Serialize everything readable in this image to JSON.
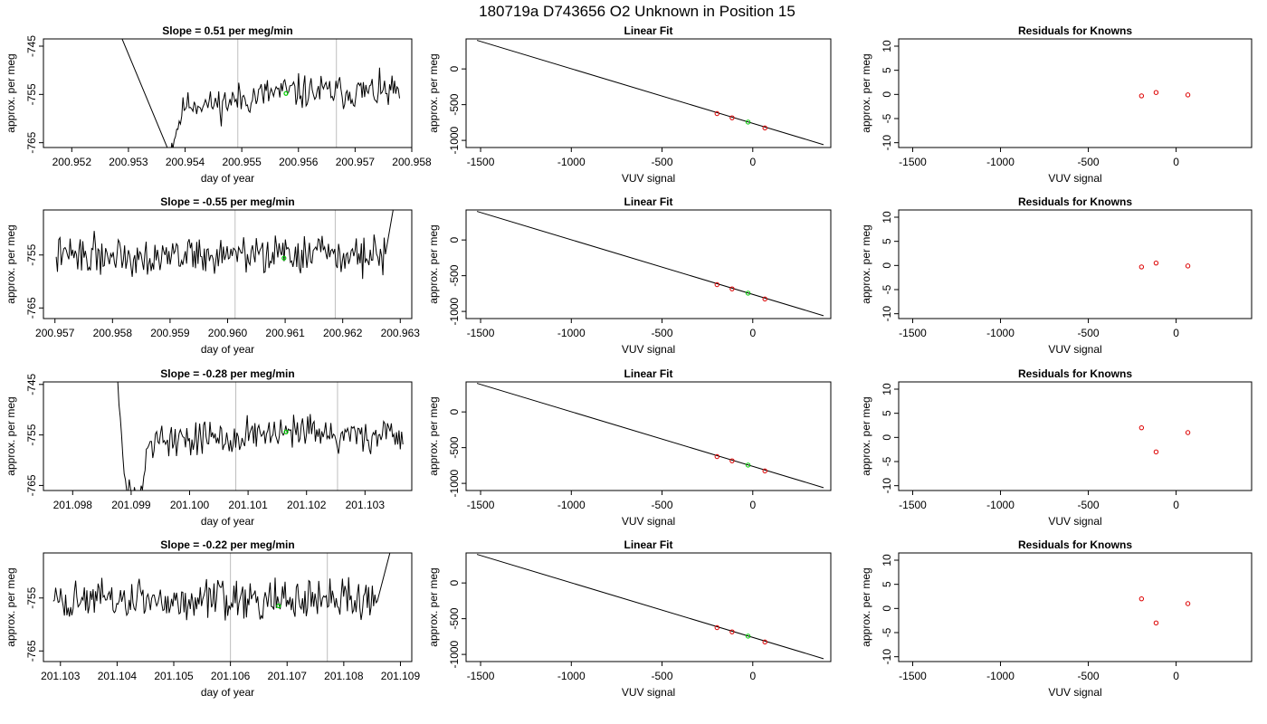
{
  "page": {
    "title": "180719a      D743656    O2 Unknown in Position  15"
  },
  "chart_data": [
    {
      "type": "line",
      "row": 0,
      "col": 0,
      "title": "Slope =  0.51  per meg/min",
      "xlabel": "day of year",
      "ylabel": "approx. per meg",
      "xlim": [
        200.9515,
        200.958
      ],
      "ylim": [
        -766,
        -743.5
      ],
      "xticks": [
        200.952,
        200.953,
        200.954,
        200.955,
        200.956,
        200.957,
        200.958
      ],
      "xtick_labels": [
        "200.952",
        "200.953",
        "200.954",
        "200.955",
        "200.956",
        "200.957",
        "200.958"
      ],
      "yticks": [
        -745,
        -755,
        -765
      ],
      "ytick_labels": [
        "-745",
        "-755",
        "-765"
      ],
      "vlines": [
        200.95493,
        200.95667
      ],
      "marker": {
        "x": 200.95578,
        "y": -754.8
      },
      "series": [
        {
          "x_start": 200.95285,
          "x_end": 200.9578,
          "rng_seed": 11,
          "segments": [
            {
              "to": 200.95287,
              "y": -743,
              "noise": 0
            },
            {
              "to": 200.95372,
              "y": -767,
              "noise": 0
            },
            {
              "to": 200.95455,
              "y": -757,
              "noise": 1.2
            },
            {
              "to": 200.9578,
              "y": -754.5,
              "noise": 1.6
            }
          ]
        }
      ]
    },
    {
      "type": "scatter",
      "row": 0,
      "col": 1,
      "title": "Linear Fit",
      "xlabel": "VUV signal",
      "ylabel": "approx. per meg",
      "xlim": [
        -1580,
        430
      ],
      "ylim": [
        -1100,
        420
      ],
      "xticks": [
        -1500,
        -1000,
        -500,
        0
      ],
      "xtick_labels": [
        "-1500",
        "-1000",
        "-500",
        "0"
      ],
      "yticks": [
        0,
        -500,
        -1000
      ],
      "ytick_labels": [
        "0",
        "-500",
        "-1000"
      ],
      "fit_line": {
        "x": [
          -1520,
          390
        ],
        "y": [
          400,
          -1060
        ]
      },
      "points": [
        {
          "x": -197,
          "y": -625
        },
        {
          "x": -114,
          "y": -684
        },
        {
          "x": 67,
          "y": -826
        }
      ],
      "unknown_point": {
        "x": -26,
        "y": -744
      }
    },
    {
      "type": "scatter",
      "row": 0,
      "col": 2,
      "title": "Residuals for Knowns",
      "xlabel": "VUV signal",
      "ylabel": "approx. per meg",
      "xlim": [
        -1580,
        430
      ],
      "ylim": [
        -11,
        11.5
      ],
      "xticks": [
        -1500,
        -1000,
        -500,
        0
      ],
      "xtick_labels": [
        "-1500",
        "-1000",
        "-500",
        "0"
      ],
      "yticks": [
        10,
        5,
        0,
        -5,
        -10
      ],
      "ytick_labels": [
        "10",
        "5",
        "0",
        "-5",
        "-10"
      ],
      "points": [
        {
          "x": -197,
          "y": -0.3
        },
        {
          "x": -114,
          "y": 0.4
        },
        {
          "x": 67,
          "y": -0.1
        }
      ]
    },
    {
      "type": "line",
      "row": 1,
      "col": 0,
      "title": "Slope =  -0.55  per meg/min",
      "xlabel": "day of year",
      "ylabel": "approx. per meg",
      "xlim": [
        200.9568,
        200.9632
      ],
      "ylim": [
        -767,
        -746.5
      ],
      "xticks": [
        200.957,
        200.958,
        200.959,
        200.96,
        200.961,
        200.962,
        200.963
      ],
      "xtick_labels": [
        "200.957",
        "200.958",
        "200.959",
        "200.960",
        "200.961",
        "200.962",
        "200.963"
      ],
      "yticks": [
        -755,
        -765
      ],
      "ytick_labels": [
        "-755",
        "-765"
      ],
      "vlines": [
        200.96013,
        200.96187
      ],
      "marker": {
        "x": 200.96098,
        "y": -755.6
      },
      "series": [
        {
          "x_start": 200.957,
          "x_end": 200.9629,
          "rng_seed": 22,
          "segments": [
            {
              "to": 200.96275,
              "y": -755,
              "noise": 1.6
            },
            {
              "to": 200.9629,
              "y": -745,
              "noise": 0
            }
          ]
        }
      ]
    },
    {
      "type": "scatter",
      "row": 1,
      "col": 1,
      "title": "Linear Fit",
      "xlabel": "VUV signal",
      "ylabel": "approx. per meg",
      "xlim": [
        -1580,
        430
      ],
      "ylim": [
        -1100,
        420
      ],
      "xticks": [
        -1500,
        -1000,
        -500,
        0
      ],
      "xtick_labels": [
        "-1500",
        "-1000",
        "-500",
        "0"
      ],
      "yticks": [
        0,
        -500,
        -1000
      ],
      "ytick_labels": [
        "0",
        "-500",
        "-1000"
      ],
      "fit_line": {
        "x": [
          -1520,
          390
        ],
        "y": [
          400,
          -1060
        ]
      },
      "points": [
        {
          "x": -197,
          "y": -625
        },
        {
          "x": -114,
          "y": -684
        },
        {
          "x": 67,
          "y": -826
        }
      ],
      "unknown_point": {
        "x": -26,
        "y": -744
      }
    },
    {
      "type": "scatter",
      "row": 1,
      "col": 2,
      "title": "Residuals for Knowns",
      "xlabel": "VUV signal",
      "ylabel": "approx. per meg",
      "xlim": [
        -1580,
        430
      ],
      "ylim": [
        -11,
        11.5
      ],
      "xticks": [
        -1500,
        -1000,
        -500,
        0
      ],
      "xtick_labels": [
        "-1500",
        "-1000",
        "-500",
        "0"
      ],
      "yticks": [
        10,
        5,
        0,
        -5,
        -10
      ],
      "ytick_labels": [
        "10",
        "5",
        "0",
        "-5",
        "-10"
      ],
      "points": [
        {
          "x": -197,
          "y": -0.3
        },
        {
          "x": -114,
          "y": 0.5
        },
        {
          "x": 67,
          "y": -0.1
        }
      ]
    },
    {
      "type": "line",
      "row": 2,
      "col": 0,
      "title": "Slope =  -0.28  per meg/min",
      "xlabel": "day of year",
      "ylabel": "approx. per meg",
      "xlim": [
        201.0975,
        201.1038
      ],
      "ylim": [
        -766,
        -744.5
      ],
      "xticks": [
        201.098,
        201.099,
        201.1,
        201.101,
        201.102,
        201.103
      ],
      "xtick_labels": [
        "201.098",
        "201.099",
        "201.100",
        "201.101",
        "201.102",
        "201.103"
      ],
      "yticks": [
        -745,
        -755,
        -765
      ],
      "ytick_labels": [
        "-745",
        "-755",
        "-765"
      ],
      "vlines": [
        201.10079,
        201.10253
      ],
      "marker": {
        "x": 201.10165,
        "y": -754.4
      },
      "series": [
        {
          "x_start": 201.09875,
          "x_end": 201.10365,
          "rng_seed": 33,
          "segments": [
            {
              "to": 201.09877,
              "y": -744,
              "noise": 0
            },
            {
              "to": 201.09915,
              "y": -766,
              "noise": 1.0
            },
            {
              "to": 201.0996,
              "y": -756,
              "noise": 1.5
            },
            {
              "to": 201.10365,
              "y": -755,
              "noise": 1.7
            }
          ]
        }
      ]
    },
    {
      "type": "scatter",
      "row": 2,
      "col": 1,
      "title": "Linear Fit",
      "xlabel": "VUV signal",
      "ylabel": "approx. per meg",
      "xlim": [
        -1580,
        430
      ],
      "ylim": [
        -1100,
        420
      ],
      "xticks": [
        -1500,
        -1000,
        -500,
        0
      ],
      "xtick_labels": [
        "-1500",
        "-1000",
        "-500",
        "0"
      ],
      "yticks": [
        0,
        -500,
        -1000
      ],
      "ytick_labels": [
        "0",
        "-500",
        "-1000"
      ],
      "fit_line": {
        "x": [
          -1520,
          390
        ],
        "y": [
          400,
          -1060
        ]
      },
      "points": [
        {
          "x": -197,
          "y": -625
        },
        {
          "x": -114,
          "y": -684
        },
        {
          "x": 67,
          "y": -826
        }
      ],
      "unknown_point": {
        "x": -26,
        "y": -744
      }
    },
    {
      "type": "scatter",
      "row": 2,
      "col": 2,
      "title": "Residuals for Knowns",
      "xlabel": "VUV signal",
      "ylabel": "approx. per meg",
      "xlim": [
        -1580,
        430
      ],
      "ylim": [
        -11,
        11.5
      ],
      "xticks": [
        -1500,
        -1000,
        -500,
        0
      ],
      "xtick_labels": [
        "-1500",
        "-1000",
        "-500",
        "0"
      ],
      "yticks": [
        10,
        5,
        0,
        -5,
        -10
      ],
      "ytick_labels": [
        "10",
        "5",
        "0",
        "-5",
        "-10"
      ],
      "points": [
        {
          "x": -197,
          "y": 2.0
        },
        {
          "x": -114,
          "y": -3.0
        },
        {
          "x": 67,
          "y": 1.0
        }
      ]
    },
    {
      "type": "line",
      "row": 3,
      "col": 0,
      "title": "Slope =  -0.22  per meg/min",
      "xlabel": "day of year",
      "ylabel": "approx. per meg",
      "xlim": [
        201.1027,
        201.1092
      ],
      "ylim": [
        -767,
        -746.5
      ],
      "xticks": [
        201.103,
        201.104,
        201.105,
        201.106,
        201.107,
        201.108,
        201.109
      ],
      "xtick_labels": [
        "201.103",
        "201.104",
        "201.105",
        "201.106",
        "201.107",
        "201.108",
        "201.109"
      ],
      "yticks": [
        -755,
        -765
      ],
      "ytick_labels": [
        "-755",
        "-765"
      ],
      "vlines": [
        201.106,
        201.10771
      ],
      "marker": {
        "x": 201.10685,
        "y": -756.5
      },
      "series": [
        {
          "x_start": 201.10285,
          "x_end": 201.10885,
          "rng_seed": 44,
          "segments": [
            {
              "to": 201.1086,
              "y": -755.5,
              "noise": 1.7
            },
            {
              "to": 201.10885,
              "y": -745,
              "noise": 0
            }
          ]
        }
      ]
    },
    {
      "type": "scatter",
      "row": 3,
      "col": 1,
      "title": "Linear Fit",
      "xlabel": "VUV signal",
      "ylabel": "approx. per meg",
      "xlim": [
        -1580,
        430
      ],
      "ylim": [
        -1100,
        420
      ],
      "xticks": [
        -1500,
        -1000,
        -500,
        0
      ],
      "xtick_labels": [
        "-1500",
        "-1000",
        "-500",
        "0"
      ],
      "yticks": [
        0,
        -500,
        -1000
      ],
      "ytick_labels": [
        "0",
        "-500",
        "-1000"
      ],
      "fit_line": {
        "x": [
          -1520,
          390
        ],
        "y": [
          400,
          -1060
        ]
      },
      "points": [
        {
          "x": -197,
          "y": -625
        },
        {
          "x": -114,
          "y": -684
        },
        {
          "x": 67,
          "y": -826
        }
      ],
      "unknown_point": {
        "x": -26,
        "y": -744
      }
    },
    {
      "type": "scatter",
      "row": 3,
      "col": 2,
      "title": "Residuals for Knowns",
      "xlabel": "VUV signal",
      "ylabel": "approx. per meg",
      "xlim": [
        -1580,
        430
      ],
      "ylim": [
        -11,
        11.5
      ],
      "xticks": [
        -1500,
        -1000,
        -500,
        0
      ],
      "xtick_labels": [
        "-1500",
        "-1000",
        "-500",
        "0"
      ],
      "yticks": [
        10,
        5,
        0,
        -5,
        -10
      ],
      "ytick_labels": [
        "10",
        "5",
        "0",
        "-5",
        "-10"
      ],
      "points": [
        {
          "x": -197,
          "y": 2.0
        },
        {
          "x": -114,
          "y": -3.0
        },
        {
          "x": 67,
          "y": 1.0
        }
      ]
    }
  ],
  "colors": {
    "line": "#000000",
    "vline": "#bebebe",
    "marker": "#00cc00",
    "known_point": "#dd0000",
    "fit_line": "#000000",
    "axis": "#000000"
  }
}
